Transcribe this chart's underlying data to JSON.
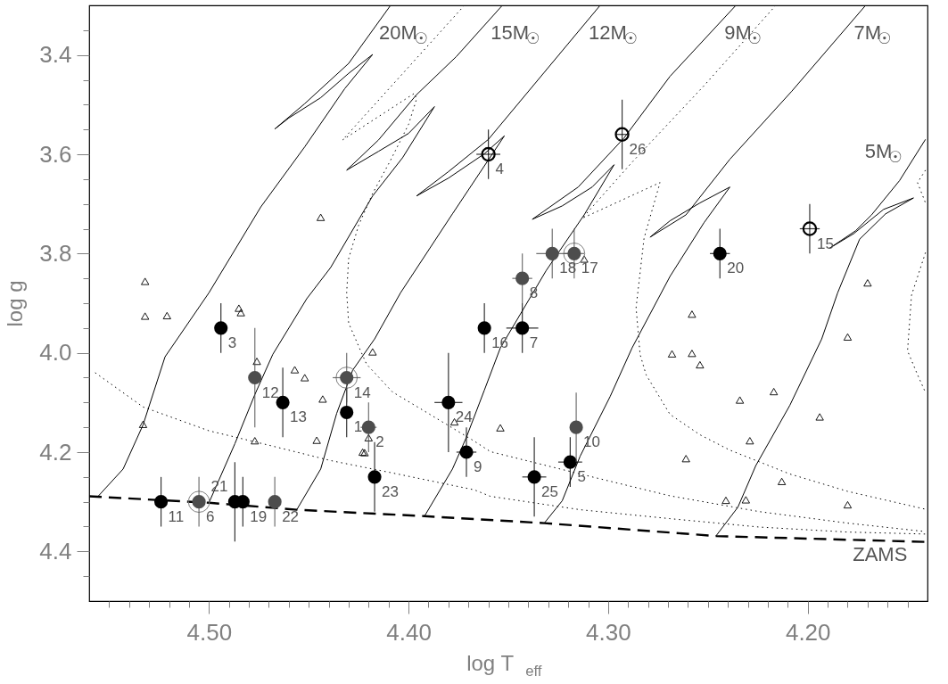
{
  "chart_data": {
    "type": "scatter",
    "xlabel": "log T$_{eff}$",
    "ylabel": "log g",
    "xlim": [
      4.56,
      4.14
    ],
    "ylim": [
      4.5,
      3.3
    ],
    "xticks": [
      {
        "value": 4.55,
        "label": null
      },
      {
        "value": 4.54,
        "label": null
      },
      {
        "value": 4.53,
        "label": null
      },
      {
        "value": 4.52,
        "label": null
      },
      {
        "value": 4.51,
        "label": null
      },
      {
        "value": 4.5,
        "label": "4.50"
      },
      {
        "value": 4.49,
        "label": null
      },
      {
        "value": 4.48,
        "label": null
      },
      {
        "value": 4.47,
        "label": null
      },
      {
        "value": 4.46,
        "label": null
      },
      {
        "value": 4.45,
        "label": null
      },
      {
        "value": 4.44,
        "label": null
      },
      {
        "value": 4.43,
        "label": null
      },
      {
        "value": 4.42,
        "label": null
      },
      {
        "value": 4.41,
        "label": null
      },
      {
        "value": 4.4,
        "label": "4.40"
      },
      {
        "value": 4.39,
        "label": null
      },
      {
        "value": 4.38,
        "label": null
      },
      {
        "value": 4.37,
        "label": null
      },
      {
        "value": 4.36,
        "label": null
      },
      {
        "value": 4.35,
        "label": null
      },
      {
        "value": 4.34,
        "label": null
      },
      {
        "value": 4.33,
        "label": null
      },
      {
        "value": 4.32,
        "label": null
      },
      {
        "value": 4.31,
        "label": null
      },
      {
        "value": 4.3,
        "label": "4.30"
      },
      {
        "value": 4.29,
        "label": null
      },
      {
        "value": 4.28,
        "label": null
      },
      {
        "value": 4.27,
        "label": null
      },
      {
        "value": 4.26,
        "label": null
      },
      {
        "value": 4.25,
        "label": null
      },
      {
        "value": 4.24,
        "label": null
      },
      {
        "value": 4.23,
        "label": null
      },
      {
        "value": 4.22,
        "label": null
      },
      {
        "value": 4.21,
        "label": null
      },
      {
        "value": 4.2,
        "label": "4.20"
      },
      {
        "value": 4.19,
        "label": null
      },
      {
        "value": 4.18,
        "label": null
      },
      {
        "value": 4.17,
        "label": null
      },
      {
        "value": 4.16,
        "label": null
      },
      {
        "value": 4.15,
        "label": null
      }
    ],
    "yticks": [
      {
        "value": 3.35,
        "label": null
      },
      3.4,
      {
        "value": 3.45,
        "label": null
      },
      {
        "value": 3.5,
        "label": null
      },
      {
        "value": 3.55,
        "label": null
      },
      3.6,
      {
        "value": 3.65,
        "label": null
      },
      {
        "value": 3.7,
        "label": null
      },
      {
        "value": 3.75,
        "label": null
      },
      3.8,
      {
        "value": 3.85,
        "label": null
      },
      {
        "value": 3.9,
        "label": null
      },
      {
        "value": 3.95,
        "label": null
      },
      {
        "value": 4.0,
        "label": "4.0"
      },
      {
        "value": 4.05,
        "label": null
      },
      {
        "value": 4.1,
        "label": null
      },
      {
        "value": 4.15,
        "label": null
      },
      4.2,
      {
        "value": 4.25,
        "label": null
      },
      {
        "value": 4.3,
        "label": null
      },
      {
        "value": 4.35,
        "label": null
      },
      4.4,
      {
        "value": 4.45,
        "label": null
      }
    ],
    "series": [
      {
        "type": "line",
        "color": "#000000",
        "line_style": "solid",
        "x": [
          4.556,
          4.543,
          4.533,
          4.522,
          4.5,
          4.474,
          4.452,
          4.432,
          4.418,
          4.43,
          4.444,
          4.46,
          4.467,
          4.452,
          4.43,
          4.409
        ],
        "values": [
          4.291,
          4.234,
          4.145,
          4.008,
          3.879,
          3.706,
          3.585,
          3.468,
          3.399,
          3.437,
          3.486,
          3.527,
          3.549,
          3.498,
          3.417,
          3.3
        ]
      },
      {
        "type": "line",
        "color": "#000000",
        "line_style": "solid",
        "x": [
          4.5,
          4.487,
          4.477,
          4.468,
          4.451,
          4.439,
          4.418,
          4.403,
          4.387,
          4.4,
          4.415,
          4.431,
          4.415,
          4.396,
          4.376,
          4.353
        ],
        "values": [
          4.302,
          4.183,
          4.084,
          4.003,
          3.891,
          3.828,
          3.684,
          3.607,
          3.504,
          3.558,
          3.594,
          3.632,
          3.571,
          3.48,
          3.403,
          3.3
        ]
      },
      {
        "type": "line",
        "color": "#000000",
        "line_style": "solid",
        "x": [
          4.456,
          4.444,
          4.436,
          4.428,
          4.417,
          4.404,
          4.378,
          4.352,
          4.362,
          4.38,
          4.396,
          4.38,
          4.36,
          4.332,
          4.304
        ],
        "values": [
          4.316,
          4.234,
          4.122,
          4.035,
          3.972,
          3.879,
          3.72,
          3.563,
          3.599,
          3.648,
          3.684,
          3.635,
          3.57,
          3.435,
          3.3
        ]
      },
      {
        "type": "line",
        "color": "#000000",
        "line_style": "solid",
        "x": [
          4.392,
          4.378,
          4.371,
          4.362,
          4.354,
          4.331,
          4.312,
          4.297,
          4.308,
          4.323,
          4.338,
          4.315,
          4.292,
          4.269,
          4.236
        ],
        "values": [
          4.329,
          4.234,
          4.17,
          4.075,
          3.99,
          3.834,
          3.722,
          3.621,
          3.666,
          3.704,
          3.731,
          3.666,
          3.567,
          3.443,
          3.3
        ]
      },
      {
        "type": "line",
        "color": "#000000",
        "line_style": "solid",
        "x": [
          4.332,
          4.323,
          4.314,
          4.299,
          4.288,
          4.269,
          4.252,
          4.239,
          4.254,
          4.269,
          4.279,
          4.261,
          4.239,
          4.208,
          4.171
        ],
        "values": [
          4.343,
          4.298,
          4.208,
          4.088,
          3.99,
          3.846,
          3.738,
          3.666,
          3.698,
          3.734,
          3.767,
          3.722,
          3.61,
          3.473,
          3.3
        ]
      },
      {
        "type": "line",
        "color": "#000000",
        "line_style": "solid",
        "x": [
          4.246,
          4.235,
          4.226,
          4.209,
          4.193,
          4.185,
          4.174,
          4.161,
          4.147,
          4.162,
          4.177,
          4.189,
          4.176,
          4.168,
          4.154,
          4.141
        ],
        "values": [
          4.369,
          4.311,
          4.227,
          4.106,
          3.972,
          3.879,
          3.771,
          3.72,
          3.688,
          3.711,
          3.76,
          3.789,
          3.754,
          3.722,
          3.653,
          3.57
        ]
      },
      {
        "type": "line",
        "color": "#000000",
        "line_style": "dashed",
        "x": [
          4.56,
          4.5,
          4.456,
          4.392,
          4.332,
          4.246,
          4.14
        ],
        "values": [
          4.289,
          4.302,
          4.316,
          4.329,
          4.343,
          4.369,
          4.381
        ]
      },
      {
        "type": "line",
        "color": "#000000",
        "line_style": "dotted",
        "x": [
          4.557,
          4.533,
          4.5,
          4.47,
          4.439,
          4.408,
          4.367,
          4.359,
          4.314,
          4.269,
          4.224,
          4.18,
          4.141
        ],
        "values": [
          4.04,
          4.109,
          4.157,
          4.186,
          4.217,
          4.242,
          4.276,
          4.289,
          4.316,
          4.334,
          4.351,
          4.361,
          4.365
        ]
      },
      {
        "type": "line",
        "color": "#000000",
        "line_style": "dotted",
        "x": [
          4.372,
          4.433,
          4.397,
          4.396,
          4.4,
          4.409,
          4.418,
          4.425,
          4.43,
          4.431,
          4.43,
          4.424,
          4.421,
          4.408,
          4.393,
          4.367,
          4.359,
          4.314,
          4.269,
          4.224,
          4.18,
          4.141
        ],
        "values": [
          3.3,
          3.571,
          3.477,
          3.489,
          3.54,
          3.612,
          3.679,
          3.743,
          3.81,
          3.879,
          3.94,
          3.996,
          4.023,
          4.079,
          4.115,
          4.178,
          4.199,
          4.244,
          4.288,
          4.32,
          4.343,
          4.36
        ]
      },
      {
        "type": "line",
        "color": "#000000",
        "line_style": "dotted",
        "x": [
          4.216,
          4.252,
          4.288,
          4.313,
          4.274,
          4.282,
          4.286,
          4.284,
          4.281,
          4.269,
          4.254,
          4.239,
          4.209,
          4.18,
          4.141
        ],
        "values": [
          3.3,
          3.462,
          3.616,
          3.729,
          3.657,
          3.769,
          3.909,
          4.003,
          4.044,
          4.124,
          4.165,
          4.196,
          4.244,
          4.279,
          4.315
        ]
      },
      {
        "type": "line",
        "color": "#000000",
        "line_style": "dotted",
        "x": [
          4.141,
          4.145,
          4.141
        ],
        "values": [
          3.632,
          3.657,
          3.698
        ]
      },
      {
        "type": "line",
        "color": "#000000",
        "line_style": "dotted",
        "x": [
          4.141,
          4.148,
          4.15,
          4.145,
          4.141
        ],
        "values": [
          3.798,
          3.884,
          3.996,
          4.044,
          4.08
        ]
      },
      {
        "color": "#000000",
        "marker": "triangle",
        "x": [
          4.532,
          4.532,
          4.521,
          4.485,
          4.484,
          4.444,
          4.418,
          4.533,
          4.476,
          4.477,
          4.457,
          4.452,
          4.443,
          4.446,
          4.42,
          4.423,
          4.422,
          4.377,
          4.354,
          4.312,
          4.268,
          4.258,
          4.254,
          4.234,
          4.217,
          4.194,
          4.229,
          4.261,
          4.213,
          4.241,
          4.231,
          4.18,
          4.17,
          4.18,
          4.258
        ],
        "values": [
          3.856,
          3.926,
          3.925,
          3.91,
          3.919,
          3.727,
          3.998,
          4.144,
          4.017,
          4.177,
          4.034,
          4.05,
          4.093,
          4.176,
          4.171,
          4.2,
          4.201,
          4.139,
          4.151,
          3.811,
          4.002,
          4.001,
          4.024,
          4.095,
          4.078,
          4.129,
          4.177,
          4.213,
          4.259,
          4.297,
          4.296,
          4.306,
          3.859,
          3.968,
          3.922
        ]
      },
      {
        "color": "#808080",
        "marker": "circle",
        "x": [
          4.505,
          4.431,
          4.317
        ],
        "values": [
          4.3,
          4.05,
          3.8
        ]
      },
      {
        "color": "#000000",
        "marker": "circle",
        "x": [
          4.494,
          4.524,
          4.487,
          4.483,
          4.463,
          4.431,
          4.417,
          4.38,
          4.371,
          4.337,
          4.319,
          4.362,
          4.343,
          4.244
        ],
        "values": [
          3.95,
          4.3,
          4.3,
          4.3,
          4.1,
          4.12,
          4.25,
          4.1,
          4.2,
          4.25,
          4.22,
          3.95,
          3.95,
          3.8
        ],
        "errors": [
          0.05,
          0.05,
          0.08,
          0.05,
          0.07,
          0.05,
          0.07,
          0.1,
          0.05,
          0.08,
          0.05,
          0.05,
          0.05,
          0.05
        ],
        "xerrors": [
          0.003,
          0.003,
          0.003,
          0.003,
          0.003,
          0.003,
          0.003,
          0.007,
          0.005,
          0.006,
          0.006,
          0.003,
          0.008,
          0.005
        ]
      },
      {
        "color": "#4d4d4d",
        "marker": "circle",
        "x": [
          4.505,
          4.477,
          4.467,
          4.431,
          4.42,
          4.316,
          4.343,
          4.328,
          4.317
        ],
        "values": [
          4.3,
          4.05,
          4.3,
          4.05,
          4.15,
          4.15,
          3.85,
          3.8,
          3.8
        ],
        "errors": [
          0.05,
          0.1,
          0.05,
          0.05,
          0.05,
          0.07,
          0.05,
          0.05,
          0.05
        ],
        "xerrors": [
          0.003,
          0.003,
          0.003,
          0.007,
          0.004,
          0.003,
          0.005,
          0.008,
          0.005
        ]
      },
      {
        "color": "#000000",
        "marker": "circle",
        "x": [
          4.36,
          4.293,
          4.199
        ],
        "values": [
          3.6,
          3.56,
          3.75
        ],
        "errors": [
          0.05,
          0.07,
          0.05
        ],
        "xerrors": [
          0.006,
          0.003,
          0.005
        ]
      }
    ],
    "annotations": [
      {
        "text": "3",
        "x": 4.494,
        "y": 3.95
      },
      {
        "text": "11",
        "x": 4.524,
        "y": 4.3
      },
      {
        "text": "21",
        "x": 4.487,
        "y": 4.3
      },
      {
        "text": "19",
        "x": 4.483,
        "y": 4.3
      },
      {
        "text": "13",
        "x": 4.463,
        "y": 4.1
      },
      {
        "text": "1",
        "x": 4.431,
        "y": 4.12
      },
      {
        "text": "23",
        "x": 4.417,
        "y": 4.25
      },
      {
        "text": "24",
        "x": 4.38,
        "y": 4.1
      },
      {
        "text": "9",
        "x": 4.371,
        "y": 4.2
      },
      {
        "text": "25",
        "x": 4.337,
        "y": 4.25
      },
      {
        "text": "5",
        "x": 4.319,
        "y": 4.22
      },
      {
        "text": "16",
        "x": 4.362,
        "y": 3.95
      },
      {
        "text": "7",
        "x": 4.343,
        "y": 3.95
      },
      {
        "text": "20",
        "x": 4.244,
        "y": 3.8
      },
      {
        "text": "6",
        "x": 4.505,
        "y": 4.3
      },
      {
        "text": "12",
        "x": 4.477,
        "y": 4.05
      },
      {
        "text": "22",
        "x": 4.467,
        "y": 4.3
      },
      {
        "text": "14",
        "x": 4.431,
        "y": 4.05
      },
      {
        "text": "2",
        "x": 4.42,
        "y": 4.15
      },
      {
        "text": "10",
        "x": 4.316,
        "y": 4.15
      },
      {
        "text": "8",
        "x": 4.343,
        "y": 3.85
      },
      {
        "text": "18",
        "x": 4.328,
        "y": 3.8
      },
      {
        "text": "17",
        "x": 4.317,
        "y": 3.8
      },
      {
        "text": "4",
        "x": 4.36,
        "y": 3.6
      },
      {
        "text": "26",
        "x": 4.293,
        "y": 3.56
      },
      {
        "text": "15",
        "x": 4.199,
        "y": 3.75
      },
      "20M$_{☉}$",
      "15M$_{☉}$",
      "12M$_{☉}$",
      "9M$_{☉}$",
      "7M$_{☉}$",
      "5M$_{☉}$",
      "ZAMS"
    ]
  }
}
